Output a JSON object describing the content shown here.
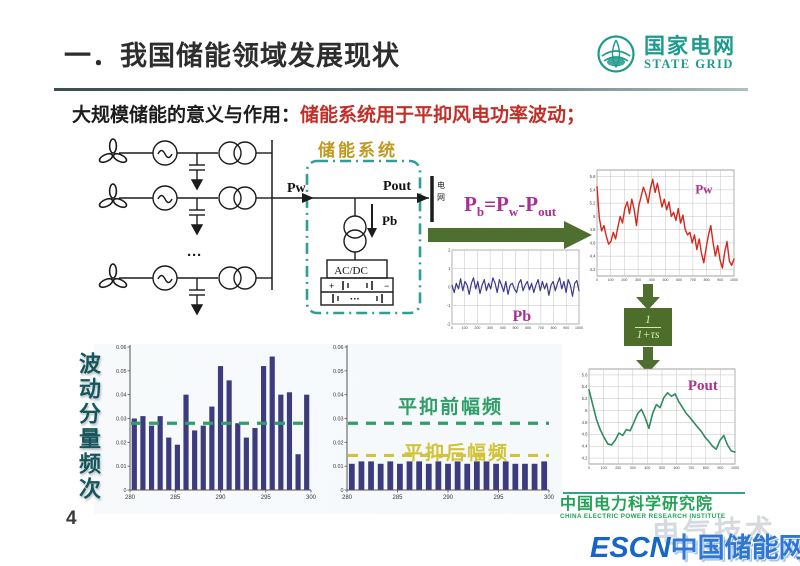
{
  "slide": {
    "title": "一．我国储能领域发展现状",
    "subtitle_black": "大规模储能的意义与作用：",
    "subtitle_red": "储能系统用于平抑风电功率波动；",
    "page_number": "4"
  },
  "logo": {
    "cn": "国家电网",
    "en": "STATE GRID"
  },
  "diagram": {
    "storage_system_label": "储能系统",
    "pw_label": "Pw",
    "pout_label": "Pout",
    "pb_label": "Pb",
    "acdc_label": "AC/DC",
    "grid_label": "电网",
    "ellipsis": "···",
    "battery_plus": "+",
    "battery_minus": "−",
    "battery_dots": "···",
    "formula": {
      "p1": "P",
      "s1": "b",
      "op1": "=",
      "p2": "P",
      "s2": "w",
      "op2": "-",
      "p3": "P",
      "s3": "out"
    },
    "transfer_numerator": "1",
    "transfer_denominator": "1+τs"
  },
  "annotations": {
    "fluctuation_ylabel": "波动分量频次",
    "before_smoothing": "平抑前幅频",
    "after_smoothing": "平抑后幅频"
  },
  "footer": {
    "institute_cn": "中国电力科学研究院",
    "institute_en": "CHINA ELECTRIC POWER RESEARCH INSTITUTE"
  },
  "watermark": {
    "escn": "ESCN",
    "cn": "中国储能网",
    "ghost": "电气技术"
  },
  "colors": {
    "logo_teal": "#1e9a8c",
    "subtitle_red": "#c03028",
    "ess_box_teal": "#2f9e96",
    "ess_label_gold": "#c09a20",
    "formula_magenta": "#aa2f92",
    "arrow_olive": "#4d7030",
    "pw_red": "#d3281e",
    "pb_navy": "#3a3a8c",
    "pout_green": "#2e8b5f",
    "bar_navy": "#3b3b7e",
    "ref_green": "#2f9e68",
    "ref_yellow": "#d2c438",
    "institute_green": "#21a254",
    "watermark_blue": "#1566c8"
  },
  "chart_data": [
    {
      "id": "pw",
      "type": "line",
      "title": "Pw",
      "legend_pos": "top-right",
      "title_size": 13,
      "color": "#d3281e",
      "line_width": 1.4,
      "grid": true,
      "ylim": [
        4.1,
        5.7
      ],
      "y_ticks": [
        4.2,
        4.4,
        4.6,
        4.8,
        5,
        5.2,
        5.4,
        5.6
      ],
      "x_ticks": [
        0,
        100,
        200,
        300,
        400,
        500,
        600,
        700,
        800,
        900,
        1000
      ],
      "values": [
        5.45,
        4.98,
        4.78,
        4.86,
        4.7,
        4.58,
        4.62,
        4.76,
        4.66,
        4.84,
        5.0,
        4.9,
        5.12,
        5.22,
        5.04,
        5.26,
        5.1,
        4.86,
        5.16,
        5.3,
        5.44,
        5.34,
        5.2,
        5.42,
        5.56,
        5.36,
        5.5,
        5.32,
        5.14,
        5.26,
        5.1,
        5.22,
        5.0,
        5.06,
        4.94,
        5.12,
        4.9,
        5.02,
        4.8,
        4.72,
        4.76,
        4.6,
        4.72,
        4.5,
        4.66,
        4.44,
        4.3,
        4.52,
        4.72,
        4.86,
        4.6,
        4.4,
        4.56,
        4.34,
        4.22,
        4.46,
        4.62,
        4.32,
        4.26,
        4.36
      ]
    },
    {
      "id": "pb",
      "type": "line",
      "title": "Pb",
      "legend_pos": "bottom-center",
      "title_size": 16,
      "color": "#3a3a8c",
      "line_width": 1.2,
      "grid": true,
      "ylim": [
        -2,
        2
      ],
      "y_ticks": [
        -2,
        -1,
        0,
        1,
        2
      ],
      "x_ticks": [
        0,
        100,
        200,
        300,
        400,
        500,
        600,
        700,
        800,
        900,
        1000
      ],
      "values": [
        0.1,
        -0.3,
        0.2,
        -0.1,
        0.45,
        -0.2,
        0.3,
        0.1,
        -0.4,
        0.2,
        0.5,
        -0.1,
        0.3,
        -0.35,
        0.1,
        0.4,
        -0.2,
        0.2,
        -0.1,
        0.5,
        0.2,
        -0.3,
        0.4,
        0.1,
        -0.25,
        0.3,
        -0.4,
        0.1,
        0.2,
        -0.1,
        -0.3,
        0.2,
        0.4,
        -0.2,
        0.1,
        0.3,
        -0.15,
        0.2,
        -0.3,
        0.1,
        0.4,
        -0.2,
        0.3,
        -0.1,
        0.2,
        -0.45,
        0.1,
        0.3,
        -0.2,
        0.2,
        0.5,
        -0.1,
        0.3,
        -0.3,
        0.4,
        0.1,
        -0.5,
        0.2,
        0.35,
        -0.2
      ]
    },
    {
      "id": "pout",
      "type": "line",
      "title": "Pout",
      "legend_pos": "top-right",
      "title_size": 15,
      "color": "#2e8b5f",
      "line_width": 1.6,
      "grid": true,
      "ylim": [
        4.1,
        5.7
      ],
      "y_ticks": [
        4.2,
        4.4,
        4.6,
        4.8,
        5,
        5.2,
        5.4,
        5.6
      ],
      "x_ticks": [
        0,
        100,
        200,
        300,
        400,
        500,
        600,
        700,
        800,
        900,
        1000
      ],
      "values": [
        5.35,
        5.1,
        4.85,
        4.68,
        4.55,
        4.44,
        4.42,
        4.5,
        4.62,
        4.58,
        4.68,
        4.66,
        4.8,
        4.95,
        5.02,
        4.88,
        4.7,
        4.95,
        5.1,
        5.05,
        5.22,
        5.3,
        5.24,
        5.28,
        5.15,
        5.05,
        4.95,
        4.88,
        4.8,
        4.72,
        4.65,
        4.55,
        4.48,
        4.4,
        4.35,
        4.5,
        4.58,
        4.42,
        4.32,
        4.3
      ]
    },
    {
      "id": "bar_before",
      "type": "bar",
      "title": "",
      "bar_color": "#3b3b7e",
      "ylim": [
        0,
        0.06
      ],
      "y_ticks": [
        0,
        0.01,
        0.02,
        0.03,
        0.04,
        0.05,
        0.06
      ],
      "x_ticks": [
        280,
        285,
        290,
        295,
        300
      ],
      "values": [
        0.03,
        0.031,
        0.027,
        0.031,
        0.022,
        0.019,
        0.04,
        0.025,
        0.027,
        0.035,
        0.052,
        0.046,
        0.028,
        0.022,
        0.026,
        0.052,
        0.056,
        0.04,
        0.041,
        0.015,
        0.04
      ],
      "ref_lines": [
        {
          "y": 0.028,
          "color": "#2f9e68"
        }
      ]
    },
    {
      "id": "bar_after",
      "type": "bar",
      "title": "",
      "bar_color": "#3b3b7e",
      "ylim": [
        0,
        0.06
      ],
      "y_ticks": [
        0,
        0.01,
        0.02,
        0.03,
        0.04,
        0.05,
        0.06
      ],
      "x_ticks": [
        280,
        285,
        290,
        295,
        300
      ],
      "values": [
        0.011,
        0.012,
        0.012,
        0.011,
        0.012,
        0.011,
        0.012,
        0.012,
        0.011,
        0.012,
        0.011,
        0.012,
        0.011,
        0.012,
        0.012,
        0.011,
        0.012,
        0.011,
        0.011,
        0.011,
        0.012
      ],
      "ref_lines": [
        {
          "y": 0.028,
          "color": "#2f9e68"
        },
        {
          "y": 0.0145,
          "color": "#d2c438"
        }
      ]
    }
  ]
}
